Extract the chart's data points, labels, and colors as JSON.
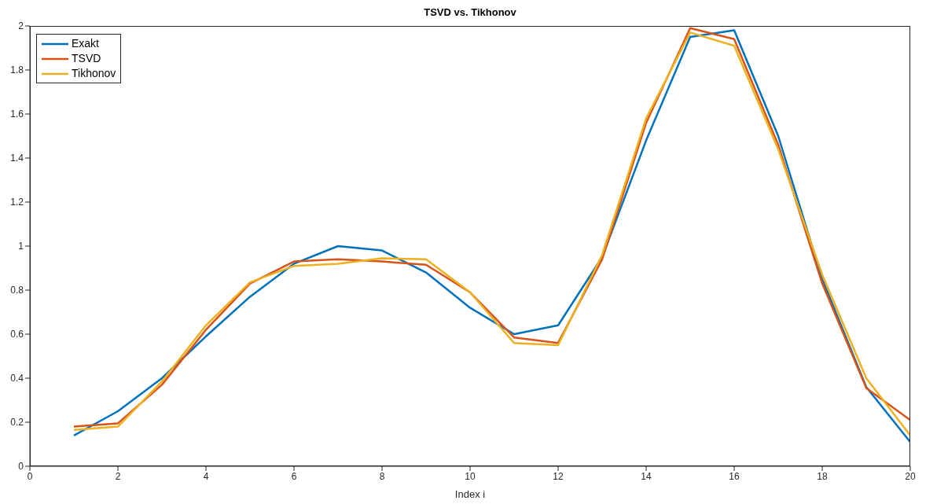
{
  "chart_data": {
    "type": "line",
    "title": "TSVD vs. Tikhonov",
    "xlabel": "Index i",
    "x": [
      1,
      2,
      3,
      4,
      5,
      6,
      7,
      8,
      9,
      10,
      11,
      12,
      13,
      14,
      15,
      16,
      17,
      18,
      19,
      20
    ],
    "series": [
      {
        "name": "Exakt",
        "color": "#0072bd",
        "values": [
          0.14,
          0.25,
          0.4,
          0.59,
          0.77,
          0.92,
          1.0,
          0.98,
          0.88,
          0.72,
          0.6,
          0.64,
          0.95,
          1.48,
          1.95,
          1.98,
          1.5,
          0.85,
          0.36,
          0.11
        ]
      },
      {
        "name": "TSVD",
        "color": "#d95319",
        "values": [
          0.18,
          0.195,
          0.37,
          0.62,
          0.83,
          0.93,
          0.94,
          0.93,
          0.915,
          0.79,
          0.585,
          0.56,
          0.94,
          1.56,
          1.99,
          1.94,
          1.46,
          0.83,
          0.355,
          0.21
        ]
      },
      {
        "name": "Tikhonov",
        "color": "#edb120",
        "values": [
          0.165,
          0.18,
          0.385,
          0.64,
          0.835,
          0.91,
          0.92,
          0.945,
          0.94,
          0.79,
          0.56,
          0.55,
          0.96,
          1.58,
          1.97,
          1.91,
          1.44,
          0.87,
          0.4,
          0.14
        ]
      }
    ],
    "xlim": [
      0,
      20
    ],
    "xticks": [
      0,
      2,
      4,
      6,
      8,
      10,
      12,
      14,
      16,
      18,
      20
    ],
    "ylim": [
      0,
      2
    ],
    "yticks": [
      0,
      0.2,
      0.4,
      0.6,
      0.8,
      1,
      1.2,
      1.4,
      1.6,
      1.8,
      2
    ],
    "grid": false,
    "legend": "top left",
    "marker": "none",
    "line_style": "solid"
  }
}
